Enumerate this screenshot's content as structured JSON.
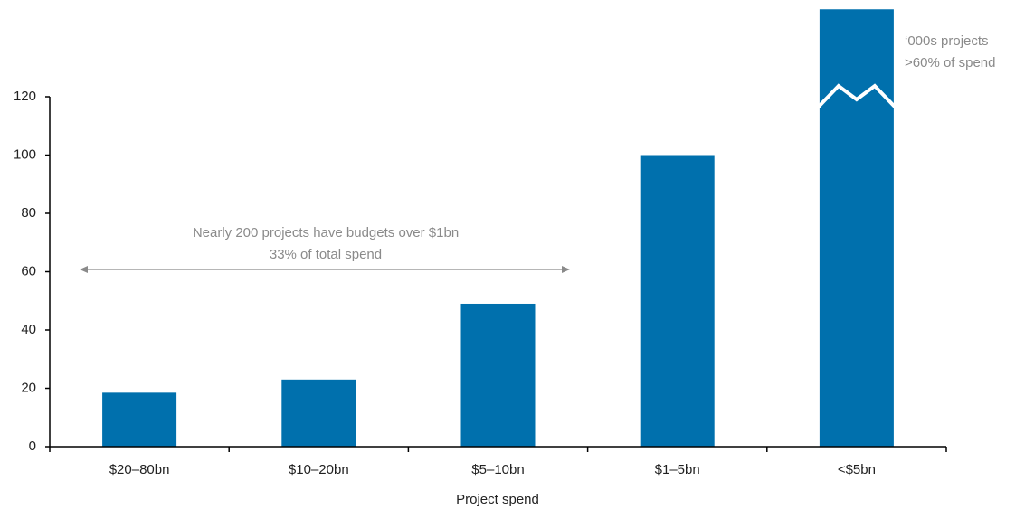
{
  "chart_data": {
    "type": "bar",
    "x_label": "Project spend",
    "categories": [
      "$20–80bn",
      "$10–20bn",
      "$5–10bn",
      "$1–5bn",
      "<$5bn"
    ],
    "values": [
      18.5,
      23,
      49,
      100,
      150
    ],
    "color": "#0070ad",
    "ylim": [
      0,
      150
    ],
    "yticks": [
      0,
      20,
      40,
      60,
      80,
      100,
      120
    ],
    "grid": false,
    "annotations": [
      {
        "lines": [
          "Nearly 200 projects have budgets over $1bn",
          "33% of total spend"
        ]
      },
      {
        "lines": [
          "‘000s projects",
          ">60% of spend"
        ]
      }
    ]
  }
}
